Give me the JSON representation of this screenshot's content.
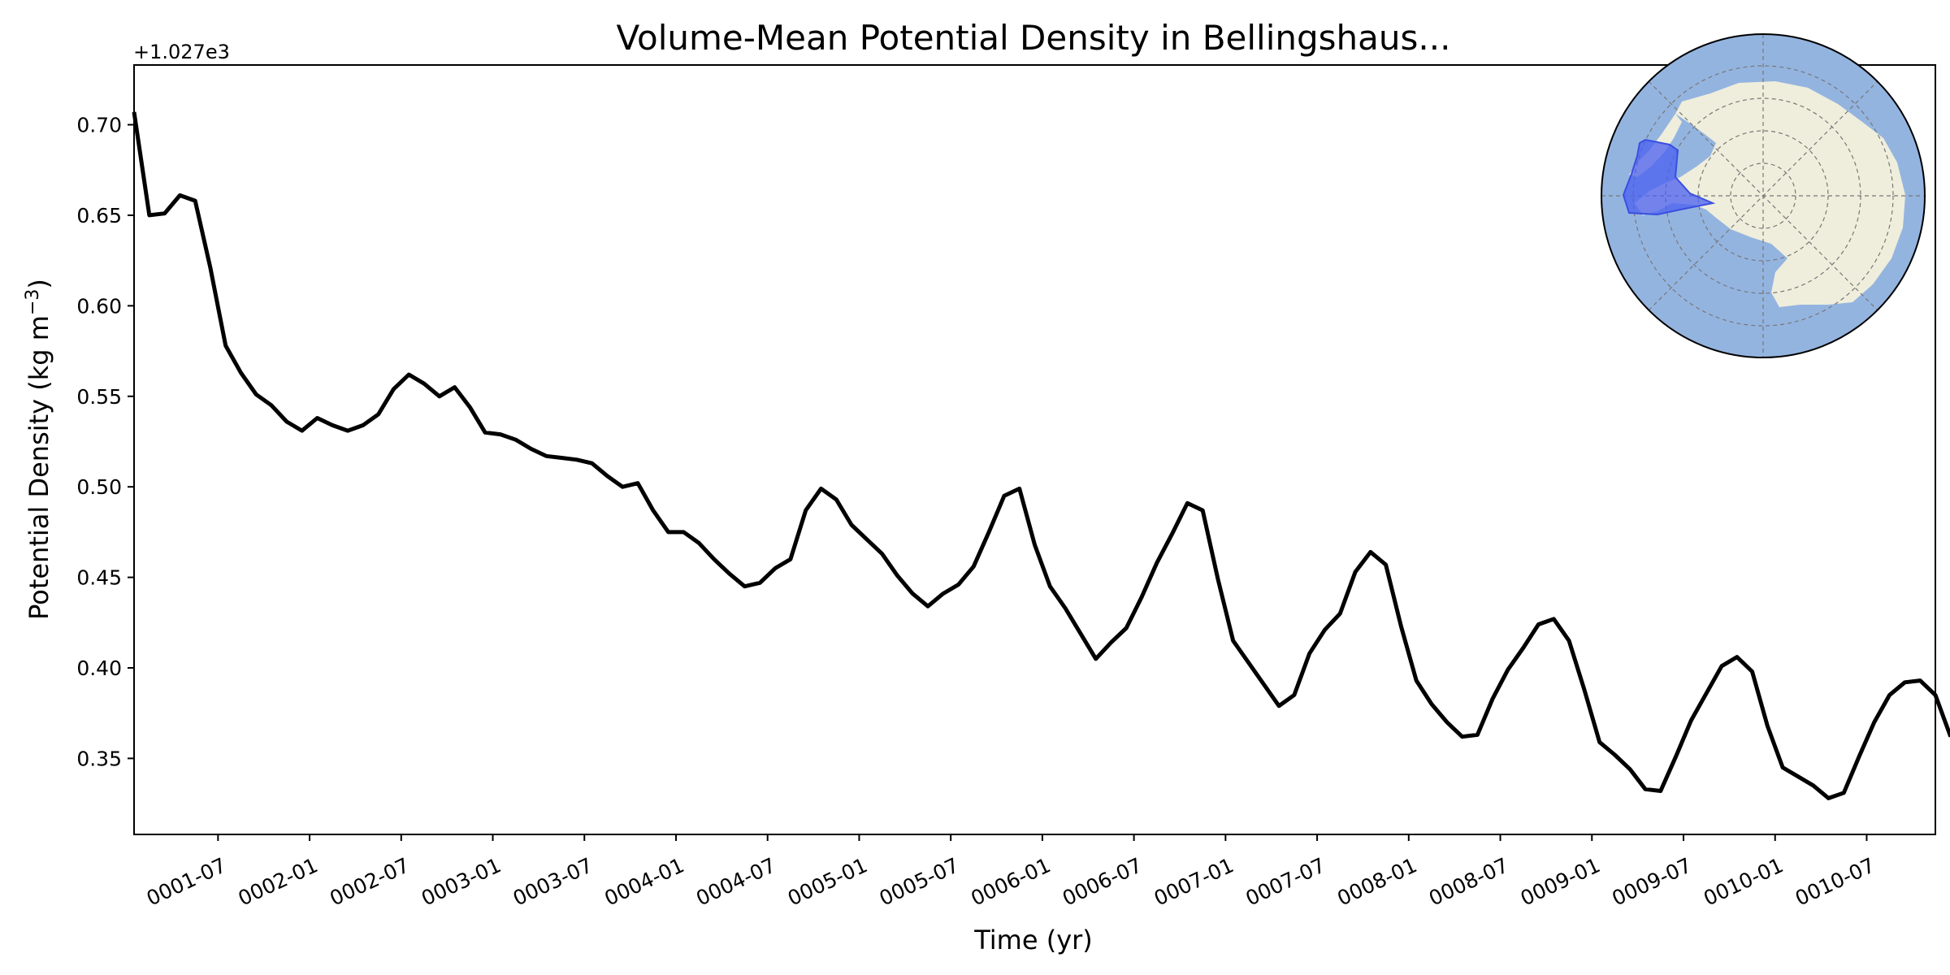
{
  "chart_data": {
    "type": "line",
    "title": "Volume-Mean Potential Density in Bellingshaus...",
    "xlabel": "Time (yr)",
    "ylabel_prefix": "Potential Density (kg m",
    "ylabel_exp": "−3",
    "ylabel_suffix": ")",
    "offset_text": "+1.027e3",
    "ylim": [
      0.308,
      0.733
    ],
    "yticks": [
      "0.35",
      "0.40",
      "0.45",
      "0.50",
      "0.55",
      "0.60",
      "0.65",
      "0.70"
    ],
    "ytick_values": [
      0.35,
      0.4,
      0.45,
      0.5,
      0.55,
      0.6,
      0.65,
      0.7
    ],
    "xticks": [
      "0001-07",
      "0002-01",
      "0002-07",
      "0003-01",
      "0003-07",
      "0004-01",
      "0004-07",
      "0005-01",
      "0005-07",
      "0006-01",
      "0006-07",
      "0007-01",
      "0007-07",
      "0008-01",
      "0008-07",
      "0009-01",
      "0009-07",
      "0010-01",
      "0010-07"
    ],
    "xtick_months": [
      5.5,
      11.5,
      17.5,
      23.5,
      29.5,
      35.5,
      41.5,
      47.5,
      53.5,
      59.5,
      65.5,
      71.5,
      77.5,
      83.5,
      89.5,
      95.5,
      101.5,
      107.5,
      113.5
    ],
    "xlim_months": [
      0.0,
      118.0
    ],
    "grid": false,
    "series": [
      {
        "color": "#000000",
        "values": [
          0.707,
          0.65,
          0.651,
          0.661,
          0.658,
          0.621,
          0.578,
          0.563,
          0.551,
          0.545,
          0.536,
          0.531,
          0.538,
          0.534,
          0.531,
          0.534,
          0.54,
          0.554,
          0.562,
          0.557,
          0.55,
          0.555,
          0.544,
          0.53,
          0.529,
          0.526,
          0.521,
          0.517,
          0.516,
          0.515,
          0.513,
          0.506,
          0.5,
          0.502,
          0.487,
          0.475,
          0.475,
          0.469,
          0.46,
          0.452,
          0.445,
          0.447,
          0.455,
          0.46,
          0.487,
          0.499,
          0.493,
          0.479,
          0.471,
          0.463,
          0.451,
          0.441,
          0.434,
          0.441,
          0.446,
          0.456,
          0.475,
          0.495,
          0.499,
          0.468,
          0.445,
          0.433,
          0.419,
          0.405,
          0.414,
          0.422,
          0.439,
          0.458,
          0.474,
          0.491,
          0.487,
          0.449,
          0.415,
          0.403,
          0.391,
          0.379,
          0.385,
          0.408,
          0.421,
          0.43,
          0.453,
          0.464,
          0.457,
          0.423,
          0.393,
          0.38,
          0.37,
          0.362,
          0.363,
          0.383,
          0.399,
          0.411,
          0.424,
          0.427,
          0.415,
          0.388,
          0.359,
          0.352,
          0.344,
          0.333,
          0.332,
          0.351,
          0.371,
          0.386,
          0.401,
          0.406,
          0.398,
          0.368,
          0.345,
          0.34,
          0.335,
          0.328,
          0.331,
          0.351,
          0.37,
          0.385,
          0.392,
          0.393,
          0.385,
          0.362
        ]
      }
    ]
  },
  "inset_map": {
    "ocean_color": "#94b4e0",
    "land_color": "#efeedc",
    "region_color": "#4a5ff0"
  }
}
